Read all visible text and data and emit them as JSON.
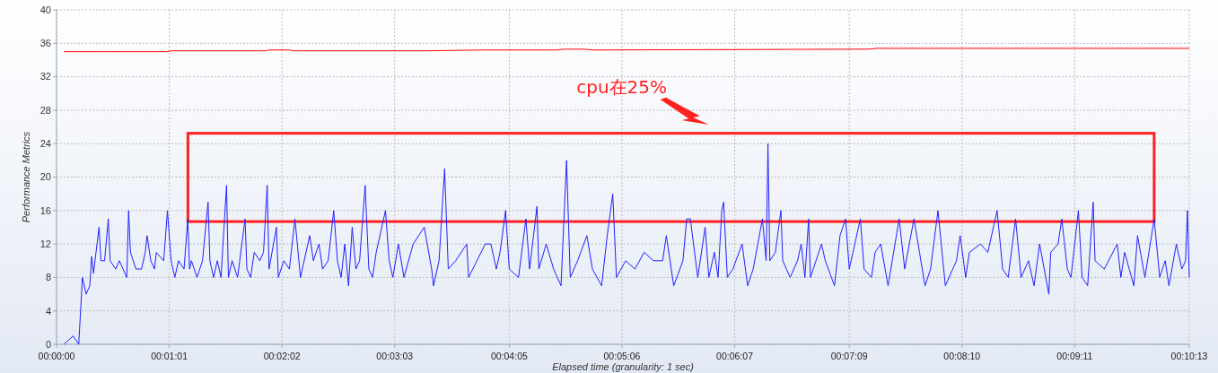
{
  "chart_data": {
    "type": "line",
    "xlabel": "Elapsed time (granularity: 1 sec)",
    "ylabel": "Performance Metrics",
    "annotations": [
      "cpu在25%"
    ],
    "xlim": [
      0,
      613
    ],
    "ylim": [
      0,
      40
    ],
    "xticks": [
      {
        "value": 0,
        "label": "00:00:00"
      },
      {
        "value": 61,
        "label": "00:01:01"
      },
      {
        "value": 122,
        "label": "00:02:02"
      },
      {
        "value": 183,
        "label": "00:03:03"
      },
      {
        "value": 245,
        "label": "00:04:05"
      },
      {
        "value": 306,
        "label": "00:05:06"
      },
      {
        "value": 367,
        "label": "00:06:07"
      },
      {
        "value": 429,
        "label": "00:07:09"
      },
      {
        "value": 490,
        "label": "00:08:10"
      },
      {
        "value": 551,
        "label": "00:09:11"
      },
      {
        "value": 613,
        "label": "00:10:13"
      }
    ],
    "yticks": [
      0,
      4,
      8,
      12,
      16,
      20,
      24,
      28,
      32,
      36,
      40
    ],
    "grid": true,
    "marker": "none",
    "line_style": "solid",
    "series": [
      {
        "color": "#ff0000",
        "x": [
          4,
          60,
          62,
          113,
          115,
          126,
          128,
          200,
          230,
          270,
          275,
          285,
          290,
          440,
          444,
          613
        ],
        "values": [
          35,
          35,
          35.1,
          35.1,
          35.2,
          35.2,
          35.1,
          35.1,
          35.2,
          35.2,
          35.3,
          35.3,
          35.2,
          35.3,
          35.4,
          35.4
        ]
      },
      {
        "color": "#2020ff",
        "x": [
          4,
          9,
          12,
          14,
          16,
          18,
          19,
          20,
          23,
          24,
          26,
          28,
          29,
          32,
          34,
          38,
          39,
          40,
          43,
          46,
          48,
          49,
          51,
          53,
          54,
          58,
          60,
          62,
          64,
          66,
          69,
          71,
          72,
          73,
          76,
          79,
          82,
          83,
          85,
          87,
          89,
          92,
          93,
          95,
          98,
          102,
          103,
          105,
          107,
          110,
          112,
          114,
          115,
          119,
          120,
          123,
          126,
          129,
          132,
          135,
          137,
          139,
          142,
          144,
          147,
          150,
          152,
          154,
          156,
          158,
          160,
          162,
          164,
          167,
          169,
          171,
          173,
          178,
          180,
          182,
          185,
          188,
          193,
          199,
          203,
          204,
          207,
          210,
          212,
          216,
          222,
          223,
          232,
          235,
          238,
          240,
          243,
          245,
          250,
          254,
          256,
          260,
          261,
          265,
          269,
          273,
          276,
          278,
          282,
          287,
          290,
          295,
          298,
          301,
          303,
          308,
          313,
          318,
          323,
          328,
          330,
          334,
          339,
          341,
          343,
          347,
          351,
          353,
          356,
          358,
          360,
          361,
          363,
          366,
          371,
          374,
          377,
          382,
          384,
          385,
          386,
          389,
          392,
          393,
          397,
          401,
          403,
          405,
          407,
          408,
          414,
          416,
          421,
          424,
          427,
          429,
          435,
          437,
          441,
          443,
          446,
          450,
          456,
          459,
          464,
          467,
          470,
          473,
          477,
          481,
          487,
          489,
          492,
          494,
          500,
          504,
          509,
          512,
          515,
          519,
          522,
          526,
          529,
          532,
          537,
          538,
          542,
          544,
          547,
          549,
          553,
          555,
          558,
          561,
          562,
          567,
          574,
          576,
          578,
          583,
          585,
          589,
          594,
          597,
          600,
          602,
          606,
          609,
          611,
          612,
          613
        ],
        "values": [
          0,
          1,
          0,
          8,
          6,
          7,
          10.5,
          8.5,
          14,
          10,
          10,
          15,
          10,
          9,
          10,
          8,
          16,
          11,
          9,
          9,
          11,
          13,
          10,
          9,
          11,
          10,
          16,
          10,
          8,
          10,
          9,
          15,
          9,
          10,
          8,
          10,
          17,
          10,
          8,
          10,
          8,
          19,
          8,
          10,
          8,
          15,
          9,
          8,
          11,
          10,
          11,
          19,
          9,
          14,
          8,
          10,
          9,
          15,
          8,
          11,
          13,
          10,
          12,
          9,
          10,
          16,
          10,
          8,
          12,
          7,
          14,
          9,
          10,
          19,
          9,
          8,
          11,
          16,
          10,
          8,
          12,
          8,
          12,
          14,
          9,
          7,
          10,
          21,
          9,
          10,
          12,
          8,
          12,
          12,
          9,
          11,
          16,
          9,
          8,
          15,
          9,
          16.5,
          9,
          12,
          9,
          7,
          22,
          8,
          10,
          13,
          9,
          7,
          13,
          18,
          8,
          10,
          9,
          11,
          10,
          10,
          13,
          7,
          10,
          15,
          15,
          8,
          14,
          8,
          11,
          8,
          16,
          17,
          8,
          9,
          12,
          7,
          9,
          15,
          10,
          24,
          10,
          11,
          16,
          10,
          8,
          10,
          12,
          8,
          15,
          8,
          12,
          10,
          7,
          13,
          15,
          9,
          15,
          9,
          8,
          11,
          12,
          7,
          15,
          9,
          15,
          11,
          7,
          9,
          16,
          7,
          10,
          13,
          8,
          11,
          12,
          11,
          16,
          9,
          8,
          15,
          8,
          10,
          7,
          12,
          6,
          11,
          12,
          15,
          9,
          8,
          16,
          8,
          7,
          17,
          10,
          9,
          12,
          8,
          11,
          7,
          13,
          8,
          15,
          8,
          10,
          7,
          12,
          9,
          10,
          16,
          8
        ]
      }
    ]
  }
}
